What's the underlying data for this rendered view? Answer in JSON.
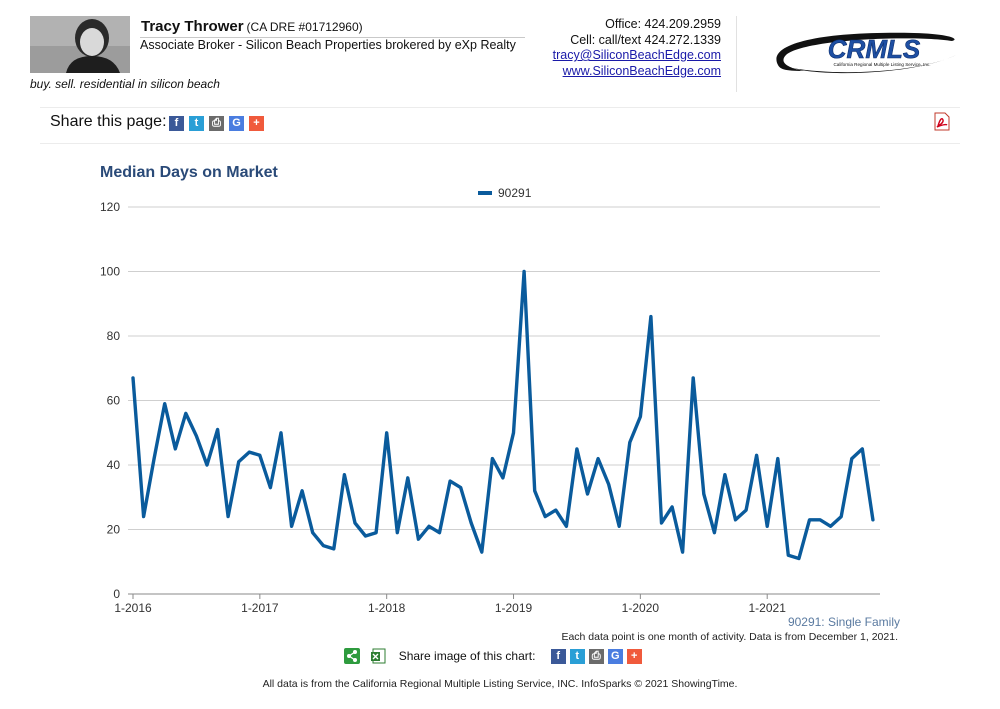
{
  "agent": {
    "name": "Tracy Thrower",
    "license": "(CA DRE #01712960)",
    "title": "Associate Broker - Silicon Beach Properties brokered by eXp Realty",
    "tagline": "buy. sell. residential in silicon beach"
  },
  "contact": {
    "office": "Office: 424.209.2959",
    "cell": "Cell: call/text 424.272.1339",
    "email": "tracy@SiliconBeachEdge.com",
    "website": "www.SiliconBeachEdge.com"
  },
  "logo": {
    "text": "CRMLS",
    "subtext": "California Regional Multiple Listing Service, Inc."
  },
  "share_bar": {
    "label": "Share this page:",
    "buttons": [
      {
        "icon": "facebook-icon",
        "glyph": "f",
        "color": "#3b5998"
      },
      {
        "icon": "twitter-icon",
        "glyph": "t",
        "color": "#2a9fd6"
      },
      {
        "icon": "print-icon",
        "glyph": "⎙",
        "color": "#6b6b6b"
      },
      {
        "icon": "google-icon",
        "glyph": "G",
        "color": "#4a7de0"
      },
      {
        "icon": "plus-icon",
        "glyph": "+",
        "color": "#f05a3c"
      }
    ]
  },
  "chart_data": {
    "type": "line",
    "title": "Median Days on Market",
    "ylim": [
      0,
      120
    ],
    "yticks": [
      0,
      20,
      40,
      60,
      80,
      100,
      120
    ],
    "xticks": [
      "1-2016",
      "1-2017",
      "1-2018",
      "1-2019",
      "1-2020",
      "1-2021"
    ],
    "x_start": "1-2016",
    "x_interval": "month",
    "grid": true,
    "legend": "top-center",
    "series": [
      {
        "name": "90291",
        "color": "#0a5b9c",
        "values": [
          67,
          24,
          42,
          59,
          45,
          56,
          49,
          40,
          51,
          24,
          41,
          44,
          43,
          33,
          50,
          21,
          32,
          19,
          15,
          14,
          37,
          22,
          18,
          19,
          50,
          19,
          36,
          17,
          21,
          19,
          35,
          33,
          22,
          13,
          42,
          36,
          50,
          100,
          32,
          24,
          26,
          21,
          45,
          31,
          42,
          34,
          21,
          47,
          55,
          86,
          22,
          27,
          13,
          67,
          31,
          19,
          37,
          23,
          26,
          43,
          21,
          42,
          12,
          11,
          23,
          23,
          21,
          24,
          42,
          45,
          23
        ]
      }
    ]
  },
  "notes": {
    "series_note": "90291: Single Family",
    "data_note": "Each data point is one month of activity. Data is from December 1, 2021.",
    "share_image_label": "Share image of this chart:"
  },
  "footer": "All data is from the California Regional Multiple Listing Service, INC. InfoSparks © 2021 ShowingTime."
}
